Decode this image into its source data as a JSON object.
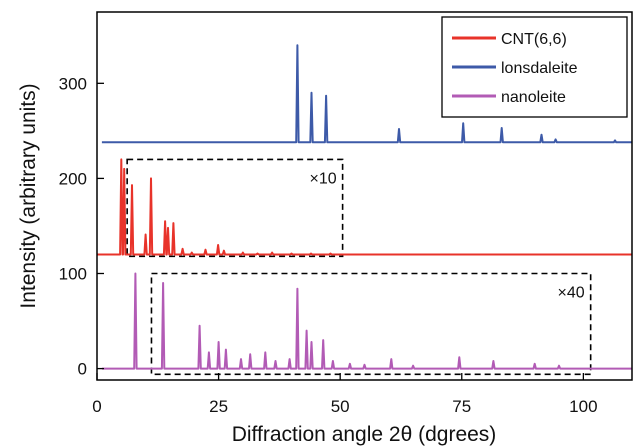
{
  "chart_data": {
    "type": "line",
    "title": "",
    "xlabel": "Diffraction angle 2θ (dgrees)",
    "ylabel": "Intensity (arbitrary units)",
    "xlim": [
      0,
      110
    ],
    "ylim": [
      -12,
      375
    ],
    "x_ticks": [
      {
        "value": 0,
        "label": "0"
      },
      {
        "value": 25,
        "label": "25"
      },
      {
        "value": 50,
        "label": "50"
      },
      {
        "value": 75,
        "label": "75"
      },
      {
        "value": 100,
        "label": "100"
      }
    ],
    "y_ticks": [
      {
        "value": 0,
        "label": "0"
      },
      {
        "value": 100,
        "label": "100"
      },
      {
        "value": 200,
        "label": "200"
      },
      {
        "value": 300,
        "label": "300"
      }
    ],
    "grid": false,
    "legend": {
      "position": "top-right",
      "entries": [
        {
          "label": "CNT(6,6)",
          "color": "#e8332a"
        },
        {
          "label": "lonsdaleite",
          "color": "#3d5aa8"
        },
        {
          "label": "nanoleite",
          "color": "#b25bb5"
        }
      ]
    },
    "series": [
      {
        "name": "CNT(6,6)",
        "color": "#e8332a",
        "baseline": 120,
        "x_range": [
          0,
          110
        ],
        "peaks": [
          {
            "x": 5.0,
            "y": 220
          },
          {
            "x": 5.6,
            "y": 210
          },
          {
            "x": 7.2,
            "y": 193
          },
          {
            "x": 10.0,
            "y": 141
          },
          {
            "x": 11.1,
            "y": 200
          },
          {
            "x": 14.0,
            "y": 155
          },
          {
            "x": 14.6,
            "y": 148
          },
          {
            "x": 15.7,
            "y": 153
          },
          {
            "x": 17.6,
            "y": 126
          },
          {
            "x": 19.5,
            "y": 122
          },
          {
            "x": 22.3,
            "y": 125
          },
          {
            "x": 24.9,
            "y": 130
          },
          {
            "x": 26.1,
            "y": 124
          },
          {
            "x": 30.0,
            "y": 122
          },
          {
            "x": 33.0,
            "y": 121
          },
          {
            "x": 36.0,
            "y": 122
          },
          {
            "x": 40.0,
            "y": 121
          },
          {
            "x": 44.0,
            "y": 121
          },
          {
            "x": 48.0,
            "y": 121
          }
        ]
      },
      {
        "name": "lonsdaleite",
        "color": "#3d5aa8",
        "baseline": 238,
        "x_range": [
          1,
          110
        ],
        "peaks": [
          {
            "x": 41.2,
            "y": 340
          },
          {
            "x": 44.1,
            "y": 290
          },
          {
            "x": 47.1,
            "y": 287
          },
          {
            "x": 62.1,
            "y": 252
          },
          {
            "x": 75.3,
            "y": 258
          },
          {
            "x": 83.2,
            "y": 253
          },
          {
            "x": 91.4,
            "y": 246
          },
          {
            "x": 94.3,
            "y": 241
          },
          {
            "x": 106.5,
            "y": 240
          }
        ]
      },
      {
        "name": "nanoleite",
        "color": "#b25bb5",
        "baseline": 0,
        "x_range": [
          1,
          110
        ],
        "peaks": [
          {
            "x": 7.9,
            "y": 100
          },
          {
            "x": 13.6,
            "y": 90
          },
          {
            "x": 21.1,
            "y": 45
          },
          {
            "x": 23.0,
            "y": 17
          },
          {
            "x": 25.0,
            "y": 28
          },
          {
            "x": 26.5,
            "y": 20
          },
          {
            "x": 29.6,
            "y": 10
          },
          {
            "x": 31.5,
            "y": 15
          },
          {
            "x": 34.6,
            "y": 17
          },
          {
            "x": 36.7,
            "y": 8
          },
          {
            "x": 39.6,
            "y": 10
          },
          {
            "x": 41.2,
            "y": 84
          },
          {
            "x": 43.1,
            "y": 40
          },
          {
            "x": 44.1,
            "y": 28
          },
          {
            "x": 46.5,
            "y": 30
          },
          {
            "x": 48.5,
            "y": 8
          },
          {
            "x": 52.0,
            "y": 5
          },
          {
            "x": 55.0,
            "y": 4
          },
          {
            "x": 60.5,
            "y": 10
          },
          {
            "x": 65.0,
            "y": 3
          },
          {
            "x": 74.5,
            "y": 12
          },
          {
            "x": 81.5,
            "y": 8
          },
          {
            "x": 90.0,
            "y": 5
          },
          {
            "x": 95.0,
            "y": 3
          }
        ]
      }
    ],
    "annotations": [
      {
        "text": "×10",
        "box_x": [
          6.2,
          50.5
        ],
        "box_y": [
          118,
          220
        ]
      },
      {
        "text": "×40",
        "box_x": [
          11.2,
          101.5
        ],
        "box_y": [
          -6,
          100
        ]
      }
    ]
  }
}
